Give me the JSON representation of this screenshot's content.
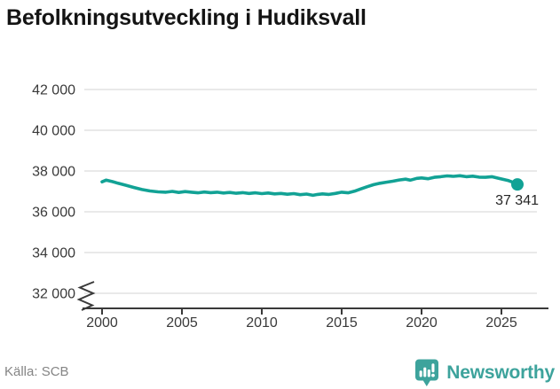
{
  "title": "Befolkningsutveckling i Hudiksvall",
  "source": "Källa: SCB",
  "brand": {
    "name": "Newsworthy",
    "logo_icon": "bar-chart-speech-bubble"
  },
  "colors": {
    "line": "#12a295",
    "end_dot": "#12a295",
    "grid": "#e2e2e2",
    "axis": "#3a3a3a",
    "tick_label": "#3a3a3a",
    "title": "#141414",
    "end_label": "#262626",
    "source": "#858585",
    "brand": "#3da39c",
    "background": "#ffffff"
  },
  "chart_data": {
    "type": "line",
    "title": "Befolkningsutveckling i Hudiksvall",
    "series_name": "Befolkning",
    "x": [
      2000.0,
      2000.25,
      2000.6,
      2001.0,
      2001.5,
      2002.0,
      2002.5,
      2003.0,
      2003.5,
      2004.0,
      2004.4,
      2004.8,
      2005.2,
      2005.6,
      2006.0,
      2006.4,
      2006.8,
      2007.2,
      2007.6,
      2008.0,
      2008.4,
      2008.8,
      2009.2,
      2009.6,
      2010.0,
      2010.4,
      2010.8,
      2011.2,
      2011.6,
      2012.0,
      2012.4,
      2012.8,
      2013.2,
      2013.5,
      2013.8,
      2014.2,
      2014.6,
      2015.0,
      2015.4,
      2015.8,
      2016.2,
      2016.6,
      2017.0,
      2017.4,
      2017.8,
      2018.2,
      2018.6,
      2019.0,
      2019.3,
      2019.7,
      2020.0,
      2020.4,
      2020.8,
      2021.2,
      2021.6,
      2022.0,
      2022.4,
      2022.8,
      2023.2,
      2023.6,
      2024.0,
      2024.4,
      2024.8,
      2025.1,
      2025.4,
      2025.7,
      2026.0
    ],
    "y": [
      37470,
      37550,
      37490,
      37400,
      37300,
      37190,
      37090,
      37020,
      36980,
      36960,
      37000,
      36950,
      36990,
      36960,
      36930,
      36970,
      36940,
      36960,
      36920,
      36950,
      36910,
      36940,
      36900,
      36930,
      36890,
      36920,
      36880,
      36900,
      36860,
      36890,
      36840,
      36870,
      36810,
      36850,
      36880,
      36850,
      36900,
      36960,
      36930,
      37010,
      37120,
      37230,
      37330,
      37400,
      37450,
      37500,
      37560,
      37600,
      37550,
      37640,
      37660,
      37620,
      37690,
      37720,
      37760,
      37740,
      37770,
      37720,
      37750,
      37700,
      37690,
      37720,
      37650,
      37590,
      37540,
      37450,
      37341
    ],
    "end_value": 37341,
    "end_label": "37 341",
    "x_ticks": [
      2000,
      2005,
      2010,
      2015,
      2020,
      2025
    ],
    "x_tick_labels": [
      "2000",
      "2005",
      "2010",
      "2015",
      "2020",
      "2025"
    ],
    "y_ticks": [
      32000,
      34000,
      36000,
      38000,
      40000,
      42000
    ],
    "y_tick_labels": [
      "32 000",
      "34 000",
      "36 000",
      "38 000",
      "40 000",
      "42 000"
    ],
    "xlim": [
      1998.889,
      2027.222
    ],
    "ylim": [
      32000,
      42000
    ],
    "grid": "horizontal",
    "axis_break": true,
    "legend": "none",
    "xlabel": "",
    "ylabel": ""
  }
}
